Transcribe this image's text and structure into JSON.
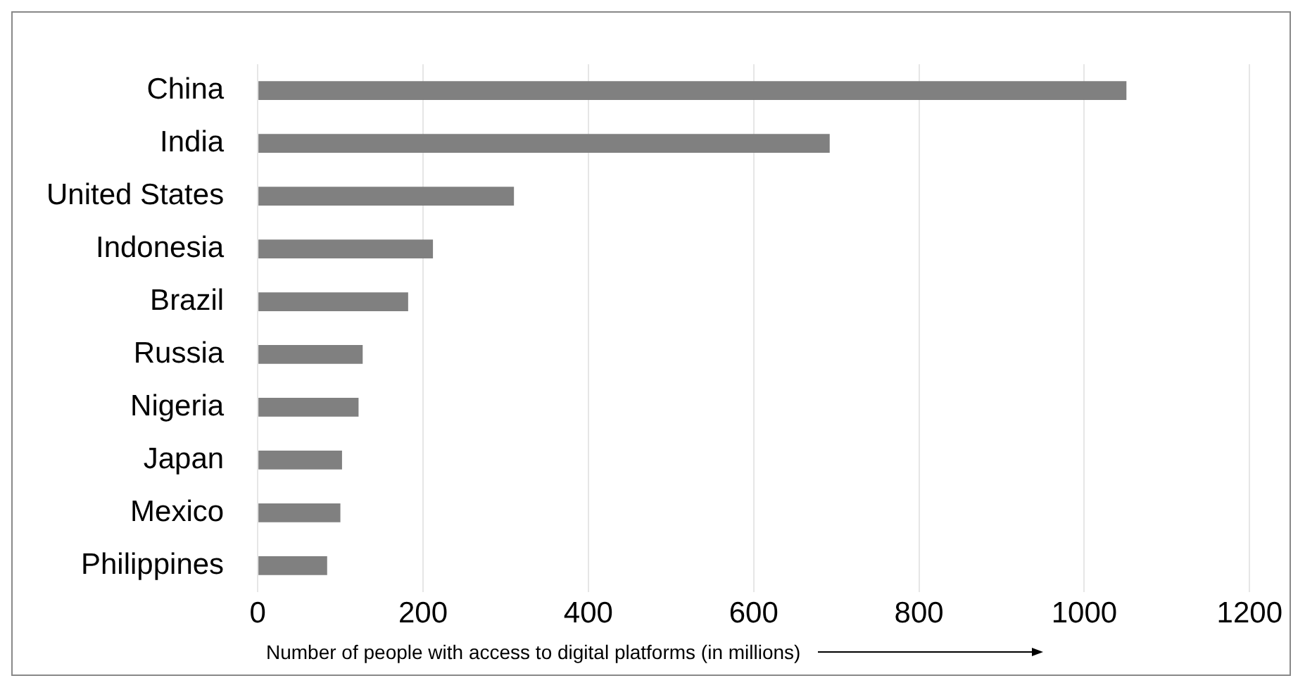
{
  "chart_data": {
    "type": "bar",
    "orientation": "horizontal",
    "xlabel": "Number of people with access to digital platforms (in millions)",
    "categories": [
      "China",
      "India",
      "United States",
      "Indonesia",
      "Brazil",
      "Russia",
      "Nigeria",
      "Japan",
      "Mexico",
      "Philippines"
    ],
    "values": [
      1051,
      692,
      310,
      212,
      182,
      127,
      122,
      102,
      100,
      84
    ],
    "color": "#808080",
    "xlim": [
      0,
      1200
    ],
    "xticks": [
      0,
      200,
      400,
      600,
      800,
      1000,
      1200
    ],
    "grid": "x",
    "legend": false
  }
}
